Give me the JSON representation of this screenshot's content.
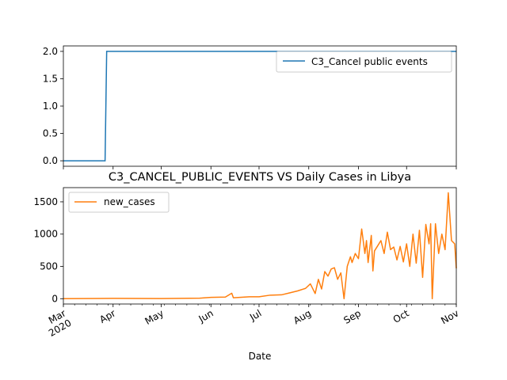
{
  "chart_data": [
    {
      "type": "line",
      "title": "",
      "xlabel": "",
      "ylabel": "",
      "ylim": [
        -0.1,
        2.1
      ],
      "yticks": [
        "0.0",
        "0.5",
        "1.0",
        "1.5",
        "2.0"
      ],
      "ytick_values": [
        0,
        0.5,
        1.0,
        1.5,
        2.0
      ],
      "legend": "top-right",
      "series": [
        {
          "name": "C3_Cancel public events",
          "color": "#1f77b4",
          "x": [
            "2020-03-01",
            "2020-03-27",
            "2020-03-28",
            "2020-11-01"
          ],
          "values": [
            0,
            0,
            2,
            2
          ]
        }
      ]
    },
    {
      "type": "line",
      "title": "C3_CANCEL_PUBLIC_EVENTS VS Daily Cases in Libya",
      "xlabel": "Date",
      "ylabel": "",
      "ylim": [
        -82,
        1720
      ],
      "yticks": [
        "0",
        "500",
        "1000",
        "1500"
      ],
      "ytick_values": [
        0,
        500,
        1000,
        1500
      ],
      "xticks": [
        "Mar\n2020",
        "Apr",
        "May",
        "Jun",
        "Jul",
        "Aug",
        "Sep",
        "Oct",
        "Nov"
      ],
      "legend": "top-left",
      "series": [
        {
          "name": "new_cases",
          "color": "#ff7f0e",
          "x": [
            "2020-03-01",
            "2020-04-01",
            "2020-05-01",
            "2020-05-25",
            "2020-06-01",
            "2020-06-10",
            "2020-06-14",
            "2020-06-15",
            "2020-06-25",
            "2020-07-01",
            "2020-07-08",
            "2020-07-15",
            "2020-07-20",
            "2020-07-25",
            "2020-07-30",
            "2020-08-02",
            "2020-08-05",
            "2020-08-07",
            "2020-08-09",
            "2020-08-11",
            "2020-08-13",
            "2020-08-15",
            "2020-08-17",
            "2020-08-19",
            "2020-08-21",
            "2020-08-23",
            "2020-08-25",
            "2020-08-27",
            "2020-08-28",
            "2020-08-30",
            "2020-09-01",
            "2020-09-03",
            "2020-09-05",
            "2020-09-06",
            "2020-09-07",
            "2020-09-09",
            "2020-09-10",
            "2020-09-11",
            "2020-09-13",
            "2020-09-15",
            "2020-09-17",
            "2020-09-19",
            "2020-09-21",
            "2020-09-23",
            "2020-09-25",
            "2020-09-27",
            "2020-09-29",
            "2020-10-01",
            "2020-10-03",
            "2020-10-05",
            "2020-10-07",
            "2020-10-09",
            "2020-10-11",
            "2020-10-13",
            "2020-10-15",
            "2020-10-16",
            "2020-10-17",
            "2020-10-19",
            "2020-10-21",
            "2020-10-23",
            "2020-10-25",
            "2020-10-27",
            "2020-10-29",
            "2020-10-31",
            "2020-11-01"
          ],
          "values": [
            0,
            5,
            3,
            8,
            20,
            25,
            85,
            15,
            30,
            30,
            55,
            60,
            90,
            120,
            160,
            230,
            80,
            300,
            150,
            420,
            350,
            460,
            480,
            300,
            400,
            0,
            500,
            650,
            560,
            700,
            620,
            1080,
            700,
            900,
            560,
            980,
            430,
            740,
            820,
            900,
            700,
            1030,
            760,
            800,
            600,
            810,
            570,
            850,
            500,
            1000,
            550,
            1060,
            330,
            1150,
            850,
            1160,
            0,
            1160,
            700,
            1000,
            760,
            1640,
            900,
            850,
            470
          ]
        }
      ]
    }
  ]
}
